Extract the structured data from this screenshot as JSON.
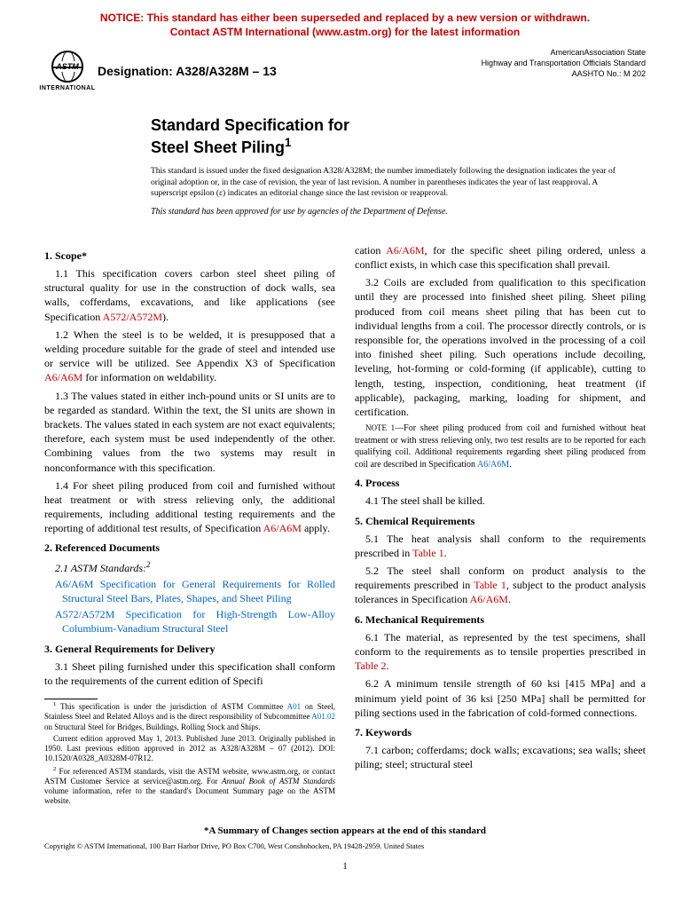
{
  "notice": {
    "line1": "NOTICE: This standard has either been superseded and replaced by a new version or withdrawn.",
    "line2": "Contact ASTM International (www.astm.org) for the latest information",
    "color": "#cc0000"
  },
  "header": {
    "logo_label": "INTERNATIONAL",
    "logo_astm": "ASTM",
    "designation_prefix": "Designation: ",
    "designation": "A328/A328M – 13",
    "aashto_line1": "AmericanAssociation State",
    "aashto_line2": "Highway and Transportation Officials Standard",
    "aashto_line3": "AASHTO No.: M 202"
  },
  "title": {
    "line1": "Standard Specification for",
    "line2": "Steel Sheet Piling",
    "sup": "1"
  },
  "issuance": "This standard is issued under the fixed designation A328/A328M; the number immediately following the designation indicates the year of original adoption or, in the case of revision, the year of last revision. A number in parentheses indicates the year of last reapproval. A superscript epsilon (ε) indicates an editorial change since the last revision or reapproval.",
  "approval_note": "This standard has been approved for use by agencies of the Department of Defense.",
  "sections": {
    "scope": {
      "head": "1. Scope*",
      "p1a": "1.1 This specification covers carbon steel sheet piling of structural quality for use in the construction of dock walls, sea walls, cofferdams, excavations, and like applications (see Specification ",
      "p1_link": "A572/A572M",
      "p1b": ").",
      "p2a": "1.2 When the steel is to be welded, it is presupposed that a welding procedure suitable for the grade of steel and intended use or service will be utilized. See Appendix X3 of Specification ",
      "p2_link": "A6/A6M",
      "p2b": " for information on weldability.",
      "p3": "1.3 The values stated in either inch-pound units or SI units are to be regarded as standard. Within the text, the SI units are shown in brackets. The values stated in each system are not exact equivalents; therefore, each system must be used independently of the other. Combining values from the two systems may result in nonconformance with this specification.",
      "p4a": "1.4 For sheet piling produced from coil and furnished without heat treatment or with stress relieving only, the additional requirements, including additional testing requirements and the reporting of additional test results, of Specification ",
      "p4_link": "A6/A6M",
      "p4b": " apply."
    },
    "refs": {
      "head": "2. Referenced Documents",
      "sub": "2.1 ASTM Standards:",
      "sup": "2",
      "r1_code": "A6/A6M",
      "r1_text": " Specification for General Requirements for Rolled Structural Steel Bars, Plates, Shapes, and Sheet Piling",
      "r2_code": "A572/A572M",
      "r2_text": " Specification for High-Strength Low-Alloy Columbium-Vanadium Structural Steel"
    },
    "delivery": {
      "head": "3. General Requirements for Delivery",
      "p1a": "3.1 Sheet piling furnished under this specification shall conform to the requirements of the current edition of Specifi",
      "p1_cont_a": "cation ",
      "p1_link": "A6/A6M",
      "p1_cont_b": ", for the specific sheet piling ordered, unless a conflict exists, in which case this specification shall prevail.",
      "p2": "3.2 Coils are excluded from qualification to this specification until they are processed into finished sheet piling. Sheet piling produced from coil means sheet piling that has been cut to individual lengths from a coil. The processor directly controls, or is responsible for, the operations involved in the processing of a coil into finished sheet piling. Such operations include decoiling, leveling, hot-forming or cold-forming (if applicable), cutting to length, testing, inspection, conditioning, heat treatment (if applicable), packaging, marking, loading for shipment, and certification.",
      "note_label": "NOTE 1",
      "note_a": "—For sheet piling produced from coil and furnished without heat treatment or with stress relieving only, two test results are to be reported for each qualifying coil. Additional requirements regarding sheet piling produced from coil are described in Specification ",
      "note_link": "A6/A6M",
      "note_b": "."
    },
    "process": {
      "head": "4. Process",
      "p1": "4.1 The steel shall be killed."
    },
    "chem": {
      "head": "5. Chemical Requirements",
      "p1a": "5.1 The heat analysis shall conform to the requirements prescribed in ",
      "p1_link": "Table 1",
      "p1b": ".",
      "p2a": "5.2 The steel shall conform on product analysis to the requirements prescribed in ",
      "p2_link1": "Table 1",
      "p2b": ", subject to the product analysis tolerances in Specification ",
      "p2_link2": "A6/A6M",
      "p2c": "."
    },
    "mech": {
      "head": "6. Mechanical Requirements",
      "p1a": "6.1 The material, as represented by the test specimens, shall conform to the requirements as to tensile properties prescribed in ",
      "p1_link": "Table 2",
      "p1b": ".",
      "p2": "6.2 A minimum tensile strength of 60 ksi [415 MPa] and a minimum yield point of 36 ksi [250 MPa] shall be permitted for piling sections used in the fabrication of cold-formed connections."
    },
    "keywords": {
      "head": "7. Keywords",
      "p1": "7.1 carbon; cofferdams; dock walls; excavations; sea walls; sheet piling; steel; structural steel"
    }
  },
  "footnotes": {
    "f1a": " This specification is under the jurisdiction of ASTM Committee ",
    "f1_link1": "A01",
    "f1b": " on Steel, Stainless Steel and Related Alloys and is the direct responsibility of Subcommittee ",
    "f1_link2": "A01.02",
    "f1c": " on Structural Steel for Bridges, Buildings, Rolling Stock and Ships.",
    "f1d": "Current edition approved May 1, 2013. Published June 2013. Originally published in 1950. Last previous edition approved in 2012 as A328/A328M – 07 (2012). DOI: 10.1520/A0328_A0328M-07R12.",
    "f2a": " For referenced ASTM standards, visit the ASTM website, www.astm.org, or contact ASTM Customer Service at service@astm.org. For ",
    "f2_ital": "Annual Book of ASTM Standards",
    "f2b": " volume information, refer to the standard's Document Summary page on the ASTM website."
  },
  "summary_line": "*A Summary of Changes section appears at the end of this standard",
  "copyright": "Copyright © ASTM International, 100 Barr Harbor Drive, PO Box C700, West Conshohocken, PA 19428-2959. United States",
  "page_number": "1",
  "colors": {
    "notice": "#cc0000",
    "link_blue": "#0066cc",
    "link_red": "#cc0000",
    "text": "#000000",
    "bg": "#ffffff"
  }
}
